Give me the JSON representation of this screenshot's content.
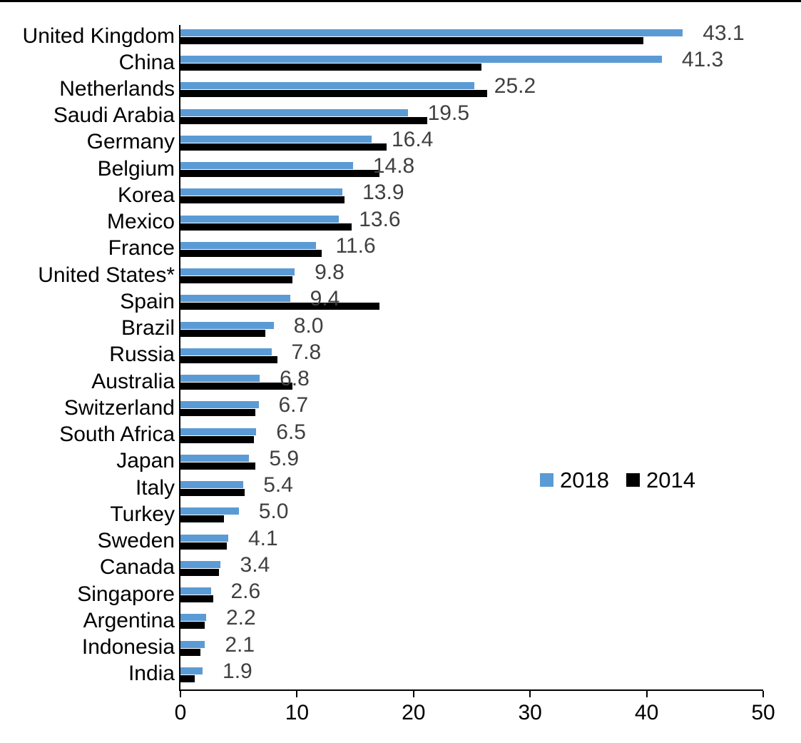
{
  "page": {
    "background_color": "#ffffff",
    "top_border_color": "#000000"
  },
  "legend": {
    "items": [
      {
        "label": "2018",
        "color": "#5B9BD5"
      },
      {
        "label": "2014",
        "color": "#000000"
      }
    ]
  },
  "chart_data": {
    "type": "bar",
    "orientation": "horizontal",
    "title": "",
    "xlabel": "",
    "ylabel": "",
    "xlim": [
      0,
      50
    ],
    "x_ticks": [
      0,
      10,
      20,
      30,
      40,
      50
    ],
    "grid": false,
    "legend_position": "middle-right",
    "value_label_color": "#404040",
    "axis_color": "#000000",
    "categories": [
      "United Kingdom",
      "China",
      "Netherlands",
      "Saudi Arabia",
      "Germany",
      "Belgium",
      "Korea",
      "Mexico",
      "France",
      "United States*",
      "Spain",
      "Brazil",
      "Russia",
      "Australia",
      "Switzerland",
      "South Africa",
      "Japan",
      "Italy",
      "Turkey",
      "Sweden",
      "Canada",
      "Singapore",
      "Argentina",
      "Indonesia",
      "India"
    ],
    "series": [
      {
        "name": "2018",
        "color": "#5B9BD5",
        "data_labels_shown": true,
        "values": [
          43.1,
          41.3,
          25.2,
          19.5,
          16.4,
          14.8,
          13.9,
          13.6,
          11.6,
          9.8,
          9.4,
          8.0,
          7.8,
          6.8,
          6.7,
          6.5,
          5.9,
          5.4,
          5.0,
          4.1,
          3.4,
          2.6,
          2.2,
          2.1,
          1.9
        ]
      },
      {
        "name": "2014",
        "color": "#000000",
        "data_labels_shown": false,
        "values": [
          39.7,
          25.8,
          26.3,
          21.2,
          17.7,
          17.1,
          14.1,
          14.7,
          12.1,
          9.6,
          17.1,
          7.3,
          8.3,
          9.6,
          6.4,
          6.3,
          6.4,
          5.5,
          3.7,
          4.0,
          3.3,
          2.8,
          2.1,
          1.7,
          1.2
        ]
      }
    ]
  }
}
